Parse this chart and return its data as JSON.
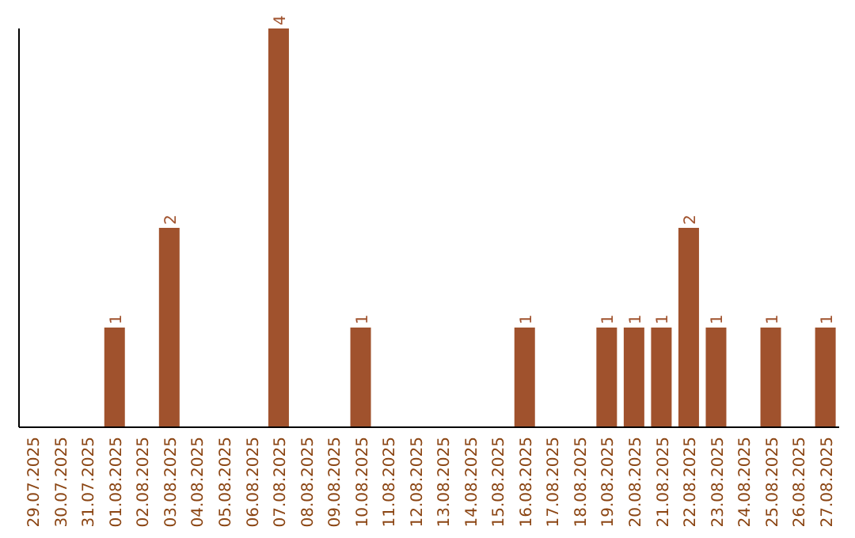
{
  "chart_data": {
    "type": "bar",
    "categories": [
      "29.07.2025",
      "30.07.2025",
      "31.07.2025",
      "01.08.2025",
      "02.08.2025",
      "03.08.2025",
      "04.08.2025",
      "05.08.2025",
      "06.08.2025",
      "07.08.2025",
      "08.08.2025",
      "09.08.2025",
      "10.08.2025",
      "11.08.2025",
      "12.08.2025",
      "13.08.2025",
      "14.08.2025",
      "15.08.2025",
      "16.08.2025",
      "17.08.2025",
      "18.08.2025",
      "19.08.2025",
      "20.08.2025",
      "21.08.2025",
      "22.08.2025",
      "23.08.2025",
      "24.08.2025",
      "25.08.2025",
      "26.08.2025",
      "27.08.2025"
    ],
    "values": [
      0,
      0,
      0,
      1,
      0,
      2,
      0,
      0,
      0,
      4,
      0,
      0,
      1,
      0,
      0,
      0,
      0,
      0,
      1,
      0,
      0,
      1,
      1,
      1,
      2,
      1,
      0,
      1,
      0,
      1
    ],
    "value_labels": [
      null,
      null,
      null,
      "1",
      null,
      "2",
      null,
      null,
      null,
      "4",
      null,
      null,
      "1",
      null,
      null,
      null,
      null,
      null,
      "1",
      null,
      null,
      "1",
      "1",
      "1",
      "2",
      "1",
      null,
      "1",
      null,
      "1"
    ],
    "color": "#a0522d",
    "grid": false,
    "legend": false,
    "tick_labels": "x"
  }
}
